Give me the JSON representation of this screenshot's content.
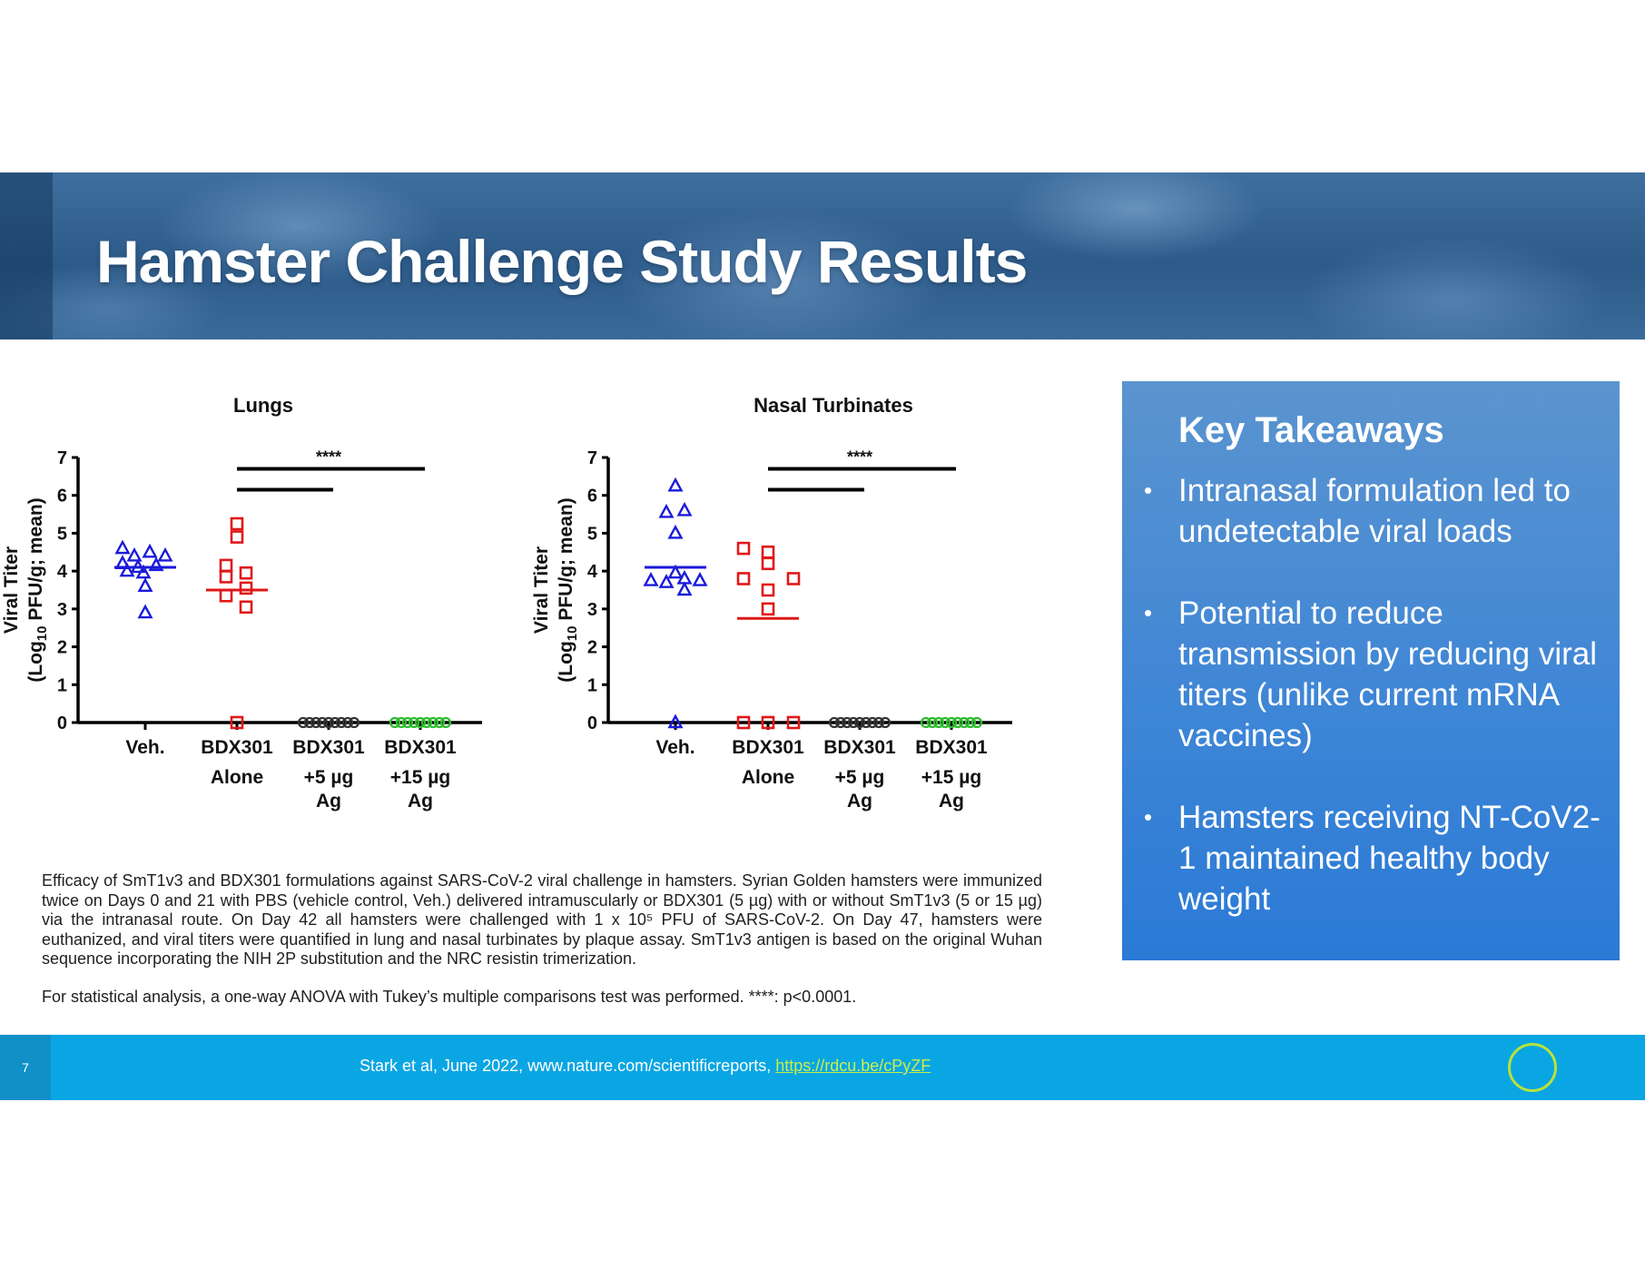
{
  "header": {
    "title": "Hamster Challenge Study Results"
  },
  "chart_data": [
    {
      "type": "scatter",
      "title": "Lungs",
      "ylabel_line1": "Viral Titer",
      "ylabel_line2": "(Log10 PFU/g; mean)",
      "ylim": [
        0,
        7
      ],
      "yticks": [
        "0",
        "1",
        "2",
        "3",
        "4",
        "5",
        "6",
        "7"
      ],
      "categories": [
        {
          "line1": "Veh.",
          "line2": "",
          "line3": ""
        },
        {
          "line1": "BDX301",
          "line2": "Alone",
          "line3": ""
        },
        {
          "line1": "BDX301",
          "line2": "+5 µg",
          "line3": "Ag"
        },
        {
          "line1": "BDX301",
          "line2": "+15 µg",
          "line3": "Ag"
        }
      ],
      "significance": "****",
      "series": [
        {
          "name": "Veh.",
          "marker": "triangle",
          "color": "#1a1adb",
          "mean": 4.1,
          "points": [
            [
              -0.25,
              4.6
            ],
            [
              -0.12,
              4.4
            ],
            [
              0.05,
              4.5
            ],
            [
              0.22,
              4.4
            ],
            [
              -0.25,
              4.2
            ],
            [
              -0.08,
              4.1
            ],
            [
              0.12,
              4.15
            ],
            [
              -0.2,
              4.0
            ],
            [
              -0.02,
              3.95
            ],
            [
              0.0,
              3.6
            ],
            [
              0.0,
              2.9
            ]
          ]
        },
        {
          "name": "BDX301 Alone",
          "marker": "square",
          "color": "#e01818",
          "mean": 3.5,
          "points": [
            [
              0.0,
              5.25
            ],
            [
              0.0,
              4.9
            ],
            [
              -0.12,
              4.15
            ],
            [
              0.1,
              3.95
            ],
            [
              -0.12,
              3.85
            ],
            [
              0.1,
              3.55
            ],
            [
              -0.12,
              3.35
            ],
            [
              0.1,
              3.05
            ],
            [
              0.0,
              0.0
            ]
          ]
        },
        {
          "name": "BDX301 +5 µg Ag",
          "marker": "circle",
          "color": "#333333",
          "zero_count": 9
        },
        {
          "name": "BDX301 +15 µg Ag",
          "marker": "circle",
          "color": "#2ebc2e",
          "zero_count": 9
        }
      ],
      "comparisons": [
        {
          "from": 1,
          "to": 2,
          "y": 6.15
        },
        {
          "from": 1,
          "to": 3,
          "y": 6.7
        }
      ]
    },
    {
      "type": "scatter",
      "title": "Nasal Turbinates",
      "ylabel_line1": "Viral Titer",
      "ylabel_line2": "(Log10 PFU/g; mean)",
      "ylim": [
        0,
        7
      ],
      "yticks": [
        "0",
        "1",
        "2",
        "3",
        "4",
        "5",
        "6",
        "7"
      ],
      "categories": [
        {
          "line1": "Veh.",
          "line2": "",
          "line3": ""
        },
        {
          "line1": "BDX301",
          "line2": "Alone",
          "line3": ""
        },
        {
          "line1": "BDX301",
          "line2": "+5 µg",
          "line3": "Ag"
        },
        {
          "line1": "BDX301",
          "line2": "+15 µg",
          "line3": "Ag"
        }
      ],
      "significance": "****",
      "series": [
        {
          "name": "Veh.",
          "marker": "triangle",
          "color": "#1a1adb",
          "mean": 4.1,
          "points": [
            [
              0.0,
              6.25
            ],
            [
              -0.1,
              5.55
            ],
            [
              0.1,
              5.6
            ],
            [
              0.0,
              5.0
            ],
            [
              0.0,
              3.95
            ],
            [
              -0.27,
              3.75
            ],
            [
              -0.1,
              3.7
            ],
            [
              0.1,
              3.8
            ],
            [
              0.27,
              3.75
            ],
            [
              0.1,
              3.5
            ],
            [
              0.0,
              0.0
            ]
          ]
        },
        {
          "name": "BDX301 Alone",
          "marker": "square",
          "color": "#e01818",
          "mean": 2.75,
          "points": [
            [
              -0.27,
              4.6
            ],
            [
              0.0,
              4.5
            ],
            [
              0.0,
              4.2
            ],
            [
              -0.27,
              3.8
            ],
            [
              0.28,
              3.8
            ],
            [
              0.0,
              3.5
            ],
            [
              0.0,
              3.0
            ],
            [
              -0.27,
              0.0
            ],
            [
              0.0,
              0.0
            ],
            [
              0.28,
              0.0
            ]
          ]
        },
        {
          "name": "BDX301 +5 µg Ag",
          "marker": "circle",
          "color": "#333333",
          "zero_count": 9
        },
        {
          "name": "BDX301 +15 µg Ag",
          "marker": "circle",
          "color": "#2ebc2e",
          "zero_count": 9
        }
      ],
      "comparisons": [
        {
          "from": 1,
          "to": 2,
          "y": 6.15
        },
        {
          "from": 1,
          "to": 3,
          "y": 6.7
        }
      ]
    }
  ],
  "takeaways": {
    "heading": "Key Takeaways",
    "items": [
      "Intranasal formulation led to undetectable viral loads",
      "Potential to reduce transmission by reducing viral titers (unlike current mRNA vaccines)",
      "Hamsters receiving NT-CoV2-1 maintained healthy body weight"
    ]
  },
  "caption": {
    "paragraph": "Efficacy of SmT1v3 and BDX301 formulations against SARS-CoV-2 viral challenge in hamsters. Syrian Golden hamsters were immunized twice on Days 0 and 21 with PBS (vehicle control, Veh.) delivered intramuscularly or BDX301 (5 µg) with or without SmT1v3 (5 or 15 µg) via the intranasal route. On Day 42 all hamsters were challenged with 1 x 10⁵ PFU of SARS-CoV-2. On Day 47, hamsters were euthanized, and viral titers were quantified in lung and nasal turbinates by plaque assay. SmT1v3 antigen is based on the original Wuhan sequence incorporating the NIH 2P substitution and the NRC resistin trimerization.",
    "stats": "For statistical analysis, a one-way ANOVA with Tukey’s multiple comparisons test was performed. ****: p<0.0001."
  },
  "footer": {
    "page_number": "7",
    "citation": "Stark et al, June 2022, www.nature.com/scientificreports, ",
    "link": "https://rdcu.be/cPyZF"
  }
}
